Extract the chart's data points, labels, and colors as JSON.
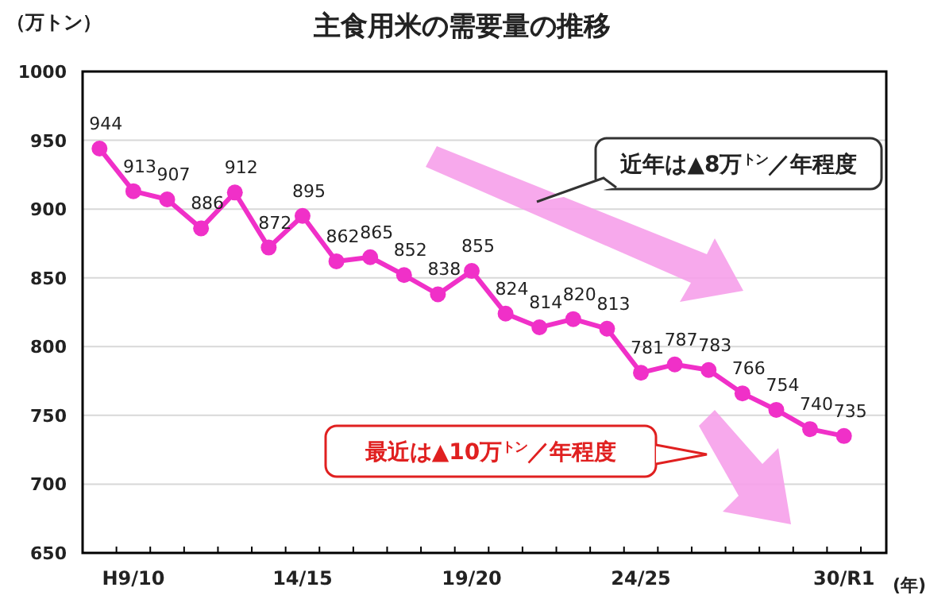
{
  "chart_data": {
    "type": "line",
    "title": "主食用米の需要量の推移",
    "ylabel": "（万トン）",
    "xlabel": "(年)",
    "categories": [
      null,
      "H9/10",
      null,
      null,
      null,
      null,
      "14/15",
      null,
      null,
      null,
      null,
      "19/20",
      null,
      null,
      null,
      null,
      "24/25",
      null,
      null,
      null,
      null,
      null,
      "30/R1"
    ],
    "series": [
      {
        "color": "#f030c8",
        "values": [
          944,
          913,
          907,
          886,
          912,
          872,
          895,
          862,
          865,
          852,
          838,
          855,
          824,
          814,
          820,
          813,
          781,
          787,
          783,
          766,
          754,
          740,
          735
        ]
      }
    ],
    "ylim": [
      650,
      1000
    ],
    "yticks": [
      650,
      700,
      750,
      800,
      850,
      900,
      950,
      1000
    ],
    "grid": "y",
    "marker": "circle",
    "data_labels": true,
    "annotations": [
      "近年は▲8万$^{トン}$／年程度",
      "最近は▲10万$^{トン}$／年程度"
    ]
  }
}
